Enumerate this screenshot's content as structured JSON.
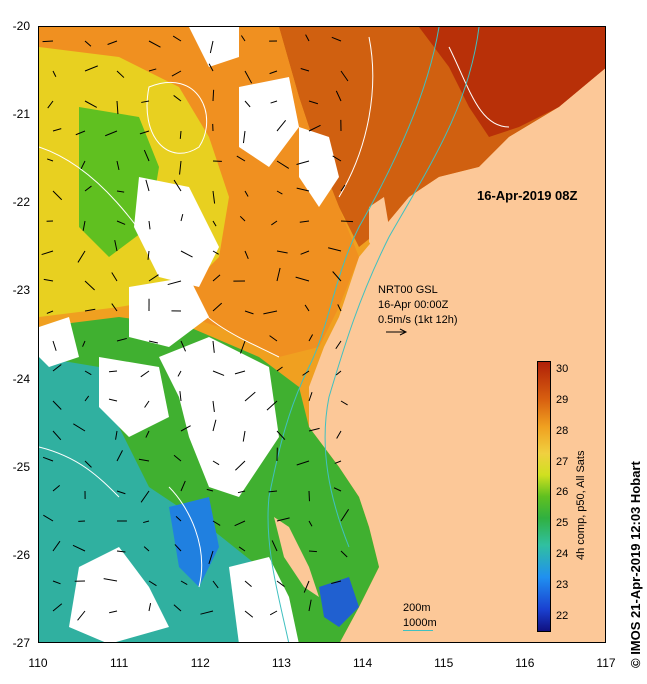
{
  "date_label": "16-Apr-2019 08Z",
  "vectors": {
    "title": "NRT00 GSL",
    "date": "16-Apr 00:00Z",
    "scale": "0.5m/s (1kt 12h)"
  },
  "depth_contours": [
    "200m",
    "1000m"
  ],
  "credit": "© IMOS 21-Apr-2019 12:03 Hobart",
  "colorbar": {
    "label": "4h comp, p50, All Sats",
    "ticks": [
      "30",
      "29",
      "28",
      "27",
      "26",
      "25",
      "24",
      "23",
      "22"
    ],
    "range": [
      21.5,
      30.3
    ]
  },
  "axes": {
    "lat_labels": [
      "-20",
      "-21",
      "-22",
      "-23",
      "-24",
      "-25",
      "-26",
      "-27"
    ],
    "lon_labels": [
      "110",
      "111",
      "112",
      "113",
      "114",
      "115",
      "116",
      "117"
    ],
    "lat_range": [
      -27,
      -20
    ],
    "lon_range": [
      110,
      117
    ]
  },
  "colors": {
    "land": "#fcc898",
    "no_data": "#ffffff",
    "coast_contour": "#40c0c0"
  }
}
